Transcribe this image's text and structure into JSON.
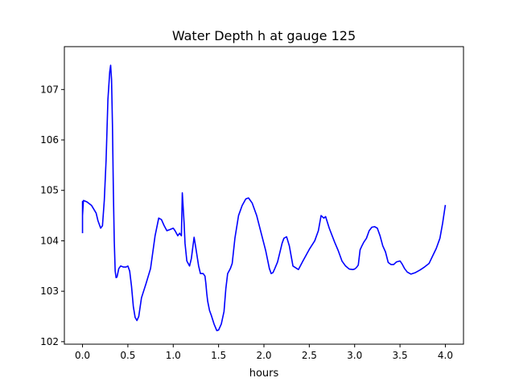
{
  "chart_data": {
    "type": "line",
    "title": "Water Depth h at gauge 125",
    "xlabel": "hours",
    "ylabel": "",
    "xlim": [
      -0.2,
      4.2
    ],
    "ylim": [
      101.95,
      107.85
    ],
    "xticks": [
      0.0,
      0.5,
      1.0,
      1.5,
      2.0,
      2.5,
      3.0,
      3.5,
      4.0
    ],
    "xtick_labels": [
      "0.0",
      "0.5",
      "1.0",
      "1.5",
      "2.0",
      "2.5",
      "3.0",
      "3.5",
      "4.0"
    ],
    "yticks": [
      102,
      103,
      104,
      105,
      106,
      107
    ],
    "ytick_labels": [
      "102",
      "103",
      "104",
      "105",
      "106",
      "107"
    ],
    "grid": false,
    "color": "#0000ff",
    "x": [
      0.0,
      0.0,
      0.0,
      0.01,
      0.05,
      0.1,
      0.15,
      0.17,
      0.2,
      0.22,
      0.24,
      0.26,
      0.28,
      0.3,
      0.31,
      0.32,
      0.33,
      0.34,
      0.35,
      0.36,
      0.37,
      0.38,
      0.4,
      0.42,
      0.45,
      0.48,
      0.5,
      0.52,
      0.54,
      0.56,
      0.58,
      0.6,
      0.62,
      0.65,
      0.7,
      0.75,
      0.8,
      0.84,
      0.87,
      0.9,
      0.93,
      0.96,
      1.0,
      1.02,
      1.05,
      1.07,
      1.09,
      1.1,
      1.11,
      1.12,
      1.13,
      1.15,
      1.18,
      1.2,
      1.23,
      1.25,
      1.28,
      1.3,
      1.33,
      1.35,
      1.36,
      1.37,
      1.38,
      1.4,
      1.42,
      1.45,
      1.48,
      1.5,
      1.53,
      1.56,
      1.58,
      1.6,
      1.63,
      1.65,
      1.68,
      1.72,
      1.76,
      1.8,
      1.83,
      1.87,
      1.92,
      1.97,
      2.02,
      2.06,
      2.08,
      2.1,
      2.12,
      2.15,
      2.18,
      2.2,
      2.22,
      2.25,
      2.28,
      2.32,
      2.38,
      2.43,
      2.5,
      2.56,
      2.6,
      2.63,
      2.66,
      2.68,
      2.72,
      2.78,
      2.82,
      2.86,
      2.9,
      2.94,
      2.98,
      3.0,
      3.02,
      3.04,
      3.06,
      3.08,
      3.1,
      3.13,
      3.16,
      3.19,
      3.22,
      3.25,
      3.28,
      3.31,
      3.34,
      3.37,
      3.4,
      3.43,
      3.46,
      3.5,
      3.52,
      3.55,
      3.58,
      3.62,
      3.67,
      3.72,
      3.77,
      3.82,
      3.86,
      3.9,
      3.94,
      3.97,
      4.0
    ],
    "y": [
      104.15,
      104.78,
      104.5,
      104.8,
      104.77,
      104.7,
      104.55,
      104.4,
      104.25,
      104.3,
      104.8,
      105.6,
      106.8,
      107.35,
      107.48,
      107.2,
      106.3,
      105.0,
      104.0,
      103.4,
      103.27,
      103.28,
      103.45,
      103.5,
      103.48,
      103.48,
      103.5,
      103.4,
      103.1,
      102.7,
      102.48,
      102.42,
      102.5,
      102.87,
      103.15,
      103.45,
      104.1,
      104.45,
      104.42,
      104.3,
      104.2,
      104.22,
      104.25,
      104.2,
      104.1,
      104.15,
      104.1,
      104.95,
      104.65,
      104.35,
      103.95,
      103.6,
      103.5,
      103.65,
      104.07,
      103.85,
      103.5,
      103.35,
      103.35,
      103.3,
      103.15,
      102.95,
      102.8,
      102.62,
      102.52,
      102.35,
      102.22,
      102.23,
      102.35,
      102.6,
      103.05,
      103.35,
      103.45,
      103.55,
      104.05,
      104.5,
      104.7,
      104.83,
      104.85,
      104.75,
      104.5,
      104.15,
      103.8,
      103.45,
      103.35,
      103.37,
      103.45,
      103.58,
      103.8,
      103.95,
      104.05,
      104.08,
      103.9,
      103.5,
      103.43,
      103.6,
      103.83,
      104.0,
      104.2,
      104.5,
      104.45,
      104.48,
      104.25,
      103.97,
      103.8,
      103.6,
      103.5,
      103.44,
      103.43,
      103.44,
      103.47,
      103.52,
      103.82,
      103.9,
      103.97,
      104.05,
      104.2,
      104.27,
      104.28,
      104.25,
      104.1,
      103.9,
      103.78,
      103.57,
      103.53,
      103.53,
      103.58,
      103.6,
      103.55,
      103.45,
      103.38,
      103.34,
      103.37,
      103.42,
      103.48,
      103.55,
      103.7,
      103.85,
      104.05,
      104.35,
      104.71
    ]
  }
}
